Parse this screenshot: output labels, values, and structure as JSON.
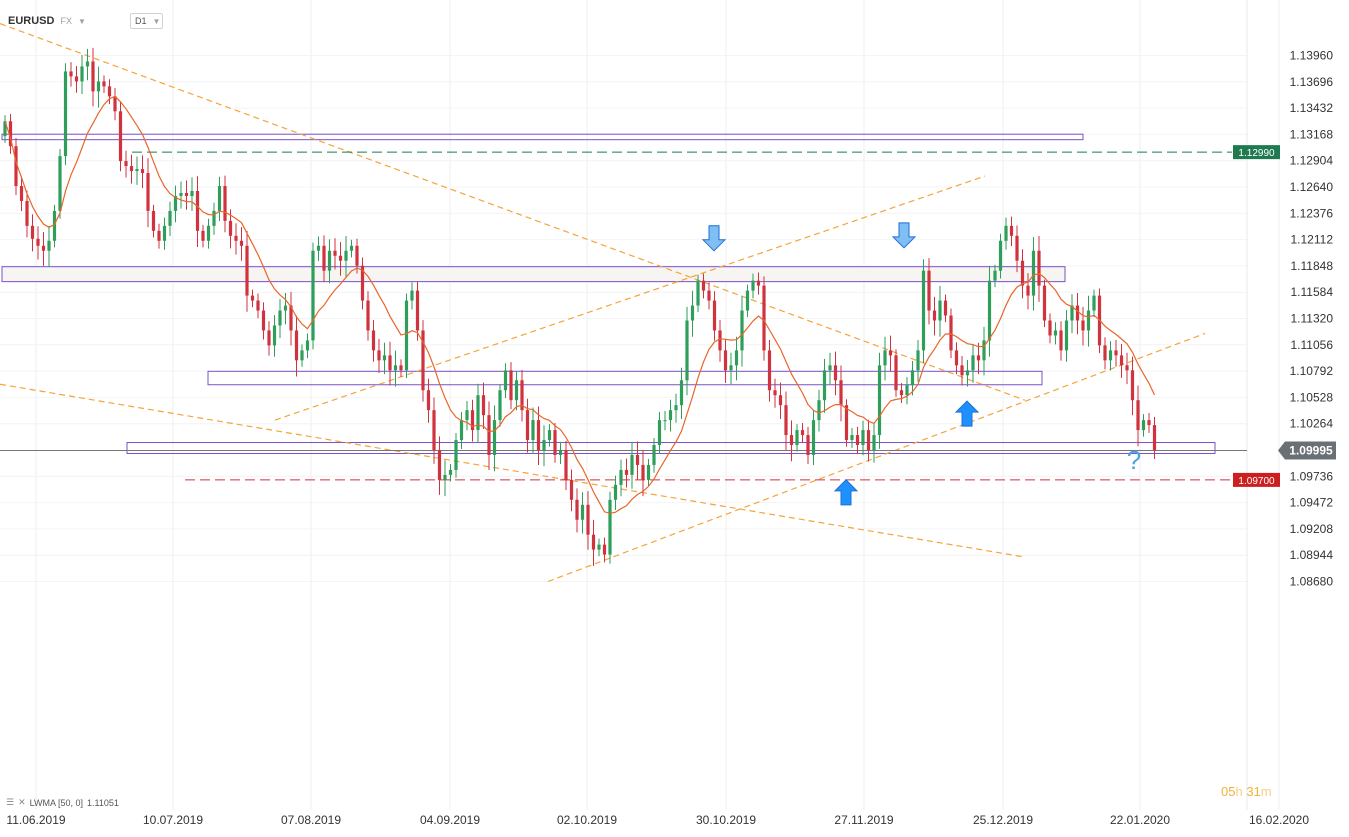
{
  "header": {
    "symbol": "EURUSD",
    "market": "FX",
    "timeframe": "D1"
  },
  "indicator": {
    "label": "LWMA [50, 0]",
    "value": "1.11051"
  },
  "timer": {
    "h": "05",
    "h_unit": "h",
    "m": "31",
    "m_unit": "m"
  },
  "colors": {
    "bull": "#2e9e5a",
    "bear": "#d0323e",
    "lwma": "#e8662b",
    "zone": "#7b4fc9",
    "trend": "#f5a43a",
    "res_line": "#1f7a50",
    "sup_line": "#d0323e",
    "arrow": "#1e90ff",
    "question": "#4aa3df"
  },
  "chart_data": {
    "type": "candlestick",
    "symbol": "EURUSD",
    "ylim": [
      1.0868,
      1.1405
    ],
    "y_ticks": [
      "1.13960",
      "1.13696",
      "1.13432",
      "1.13168",
      "1.12904",
      "1.12640",
      "1.12376",
      "1.12112",
      "1.11848",
      "1.11584",
      "1.11320",
      "1.11056",
      "1.10792",
      "1.10528",
      "1.10264",
      "1.09736",
      "1.09472",
      "1.09208",
      "1.08944",
      "1.08680"
    ],
    "x_ticks": [
      "11.06.2019",
      "10.07.2019",
      "07.08.2019",
      "04.09.2019",
      "02.10.2019",
      "30.10.2019",
      "27.11.2019",
      "25.12.2019",
      "22.01.2020",
      "16.02.2020"
    ],
    "last_price": "1.09995",
    "resistance_level": "1.12990",
    "support_level": "1.09700",
    "closes": [
      1.133,
      1.1305,
      1.1265,
      1.125,
      1.1225,
      1.1212,
      1.1205,
      1.12,
      1.121,
      1.124,
      1.1295,
      1.138,
      1.1375,
      1.137,
      1.1385,
      1.139,
      1.136,
      1.137,
      1.1365,
      1.1355,
      1.134,
      1.129,
      1.1285,
      1.128,
      1.1282,
      1.1278,
      1.124,
      1.122,
      1.121,
      1.1225,
      1.124,
      1.1255,
      1.1258,
      1.1255,
      1.126,
      1.122,
      1.121,
      1.1225,
      1.124,
      1.1265,
      1.123,
      1.1215,
      1.121,
      1.1205,
      1.1155,
      1.115,
      1.114,
      1.112,
      1.1105,
      1.1125,
      1.114,
      1.1145,
      1.112,
      1.109,
      1.11,
      1.111,
      1.12,
      1.1205,
      1.118,
      1.12,
      1.1195,
      1.119,
      1.12,
      1.1205,
      1.1185,
      1.115,
      1.112,
      1.11,
      1.109,
      1.1095,
      1.108,
      1.1085,
      1.108,
      1.115,
      1.116,
      1.112,
      1.106,
      1.104,
      1.1,
      1.097,
      1.0975,
      1.098,
      1.101,
      1.103,
      1.104,
      1.102,
      1.1055,
      1.1035,
      1.0995,
      1.103,
      1.106,
      1.108,
      1.105,
      1.107,
      1.104,
      1.101,
      1.103,
      1.1,
      1.101,
      1.102,
      1.0995,
      1.1,
      1.097,
      1.095,
      1.093,
      1.0945,
      1.0915,
      1.09,
      1.0905,
      1.0895,
      1.095,
      1.0965,
      1.098,
      1.0975,
      1.0995,
      1.0985,
      1.097,
      1.0985,
      1.1005,
      1.103,
      1.103,
      1.104,
      1.1045,
      1.107,
      1.113,
      1.1145,
      1.117,
      1.116,
      1.115,
      1.112,
      1.11,
      1.108,
      1.1085,
      1.11,
      1.114,
      1.116,
      1.117,
      1.1165,
      1.11,
      1.106,
      1.1055,
      1.1045,
      1.1015,
      1.1005,
      1.102,
      1.1015,
      1.0995,
      1.103,
      1.105,
      1.108,
      1.1085,
      1.107,
      1.1045,
      1.101,
      1.1015,
      1.1005,
      1.102,
      1.1,
      1.1015,
      1.1085,
      1.11,
      1.1095,
      1.106,
      1.1055,
      1.1065,
      1.108,
      1.11,
      1.118,
      1.114,
      1.113,
      1.115,
      1.1135,
      1.11,
      1.1085,
      1.1075,
      1.108,
      1.1095,
      1.109,
      1.111,
      1.117,
      1.118,
      1.121,
      1.1225,
      1.1215,
      1.119,
      1.1165,
      1.1155,
      1.12,
      1.1165,
      1.113,
      1.1115,
      1.112,
      1.11,
      1.113,
      1.1145,
      1.113,
      1.112,
      1.114,
      1.1155,
      1.1105,
      1.109,
      1.11,
      1.1095,
      1.1085,
      1.108,
      1.105,
      1.102,
      1.103,
      1.1025,
      1.1
    ]
  }
}
